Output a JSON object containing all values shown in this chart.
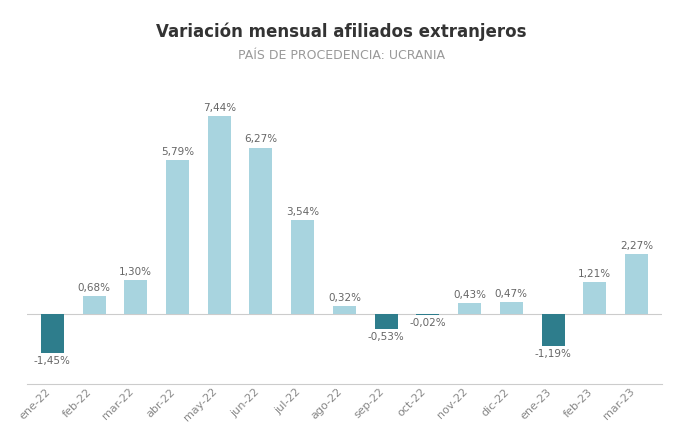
{
  "title": "Variación mensual afiliados extranjeros",
  "subtitle": "PAÍS DE PROCEDENCIA: UCRANIA",
  "categories": [
    "ene-22",
    "feb-22",
    "mar-22",
    "abr-22",
    "may-22",
    "jun-22",
    "jul-22",
    "ago-22",
    "sep-22",
    "oct-22",
    "nov-22",
    "dic-22",
    "ene-23",
    "feb-23",
    "mar-23"
  ],
  "values": [
    -1.45,
    0.68,
    1.3,
    5.79,
    7.44,
    6.27,
    3.54,
    0.32,
    -0.53,
    -0.02,
    0.43,
    0.47,
    -1.19,
    1.21,
    2.27
  ],
  "bar_color_positive": "#a8d4df",
  "bar_color_negative": "#2e7d8c",
  "background_color": "#ffffff",
  "title_fontsize": 12,
  "subtitle_fontsize": 9,
  "label_fontsize": 7.5,
  "tick_fontsize": 8,
  "label_color": "#666666",
  "tick_color": "#888888",
  "spine_color": "#cccccc",
  "ylim_min": -2.6,
  "ylim_max": 9.0,
  "bar_width": 0.55
}
